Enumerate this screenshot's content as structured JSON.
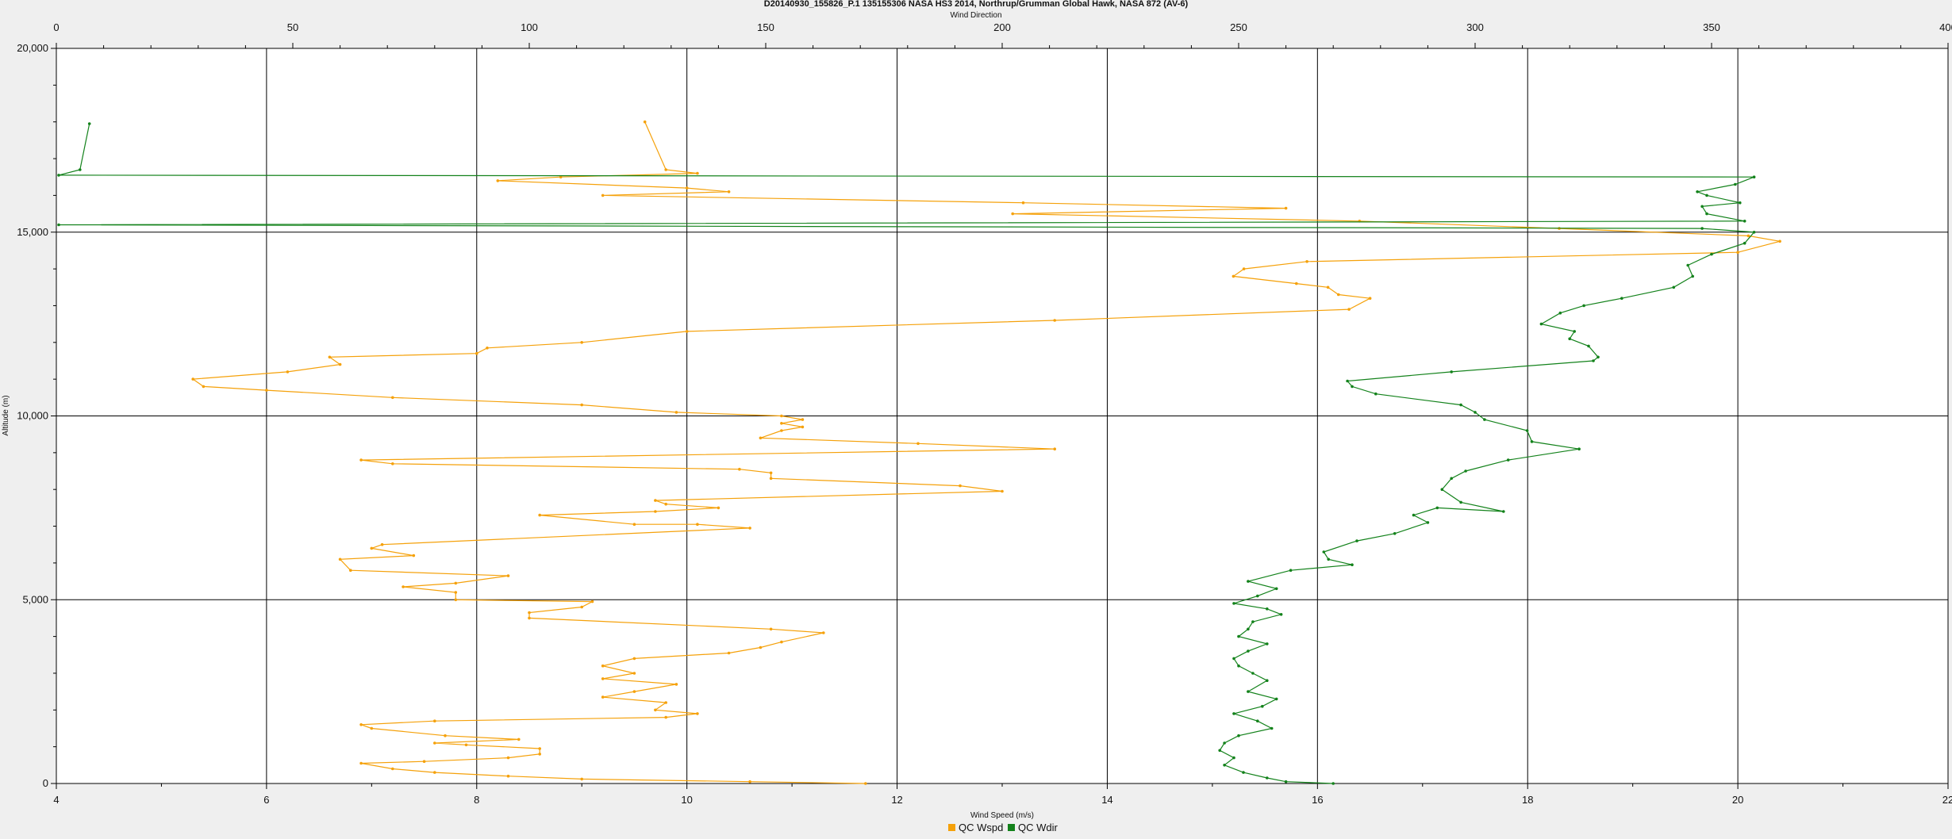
{
  "chart_data": {
    "type": "line",
    "title": "D20140930_155826_P.1 135155306 NASA HS3 2014, Northrup/Grumman Global Hawk, NASA 872 (AV-6)",
    "xlabel": "Wind Speed (m/s)",
    "x2label": "Wind Direction",
    "ylabel": "Altitude (m)",
    "xlim": [
      4,
      22
    ],
    "x2lim": [
      0,
      400
    ],
    "ylim": [
      0,
      20000
    ],
    "x_ticks": [
      "4",
      "6",
      "8",
      "10",
      "12",
      "14",
      "16",
      "18",
      "20",
      "22"
    ],
    "x2_ticks": [
      "0",
      "50",
      "100",
      "150",
      "200",
      "250",
      "300",
      "350",
      "400"
    ],
    "y_ticks": [
      "0",
      "5,000",
      "10,000",
      "15,000",
      "20,000"
    ],
    "grid": true,
    "legend_position": "bottom-center",
    "series": [
      {
        "name": "QC Wspd",
        "axis": "bottom",
        "color": "#f5a10a",
        "points": [
          [
            11.7,
            0
          ],
          [
            10.6,
            50
          ],
          [
            9.0,
            120
          ],
          [
            8.3,
            200
          ],
          [
            7.6,
            300
          ],
          [
            7.2,
            400
          ],
          [
            6.9,
            550
          ],
          [
            7.5,
            600
          ],
          [
            8.3,
            700
          ],
          [
            8.6,
            800
          ],
          [
            8.6,
            950
          ],
          [
            7.9,
            1050
          ],
          [
            7.6,
            1100
          ],
          [
            8.4,
            1200
          ],
          [
            7.7,
            1300
          ],
          [
            7.0,
            1500
          ],
          [
            6.9,
            1600
          ],
          [
            7.6,
            1700
          ],
          [
            9.8,
            1800
          ],
          [
            10.1,
            1900
          ],
          [
            9.7,
            2000
          ],
          [
            9.8,
            2200
          ],
          [
            9.2,
            2350
          ],
          [
            9.5,
            2500
          ],
          [
            9.9,
            2700
          ],
          [
            9.2,
            2850
          ],
          [
            9.5,
            3000
          ],
          [
            9.2,
            3200
          ],
          [
            9.5,
            3400
          ],
          [
            10.4,
            3550
          ],
          [
            10.7,
            3700
          ],
          [
            10.9,
            3850
          ],
          [
            11.3,
            4100
          ],
          [
            10.8,
            4200
          ],
          [
            8.5,
            4500
          ],
          [
            8.5,
            4650
          ],
          [
            9.0,
            4800
          ],
          [
            9.1,
            4950
          ],
          [
            7.8,
            5000
          ],
          [
            7.8,
            5200
          ],
          [
            7.3,
            5350
          ],
          [
            7.8,
            5450
          ],
          [
            8.3,
            5650
          ],
          [
            6.8,
            5800
          ],
          [
            6.7,
            6100
          ],
          [
            7.4,
            6200
          ],
          [
            7.0,
            6400
          ],
          [
            7.1,
            6500
          ],
          [
            10.6,
            6950
          ],
          [
            10.1,
            7050
          ],
          [
            9.5,
            7050
          ],
          [
            8.6,
            7300
          ],
          [
            9.7,
            7400
          ],
          [
            10.3,
            7500
          ],
          [
            9.8,
            7600
          ],
          [
            9.7,
            7700
          ],
          [
            13.0,
            7950
          ],
          [
            12.6,
            8100
          ],
          [
            10.8,
            8300
          ],
          [
            10.8,
            8450
          ],
          [
            10.5,
            8550
          ],
          [
            7.2,
            8700
          ],
          [
            6.9,
            8800
          ],
          [
            13.5,
            9100
          ],
          [
            12.2,
            9250
          ],
          [
            10.7,
            9400
          ],
          [
            10.9,
            9600
          ],
          [
            11.1,
            9700
          ],
          [
            10.9,
            9800
          ],
          [
            11.1,
            9900
          ],
          [
            10.9,
            10000
          ],
          [
            9.9,
            10100
          ],
          [
            9.0,
            10300
          ],
          [
            7.2,
            10500
          ],
          [
            6.0,
            10700
          ],
          [
            5.4,
            10800
          ],
          [
            5.3,
            11000
          ],
          [
            6.2,
            11200
          ],
          [
            6.7,
            11400
          ],
          [
            6.6,
            11600
          ],
          [
            8.0,
            11700
          ],
          [
            8.1,
            11850
          ],
          [
            9.0,
            12000
          ],
          [
            10.0,
            12300
          ],
          [
            13.5,
            12600
          ],
          [
            16.3,
            12900
          ],
          [
            16.5,
            13200
          ],
          [
            16.2,
            13300
          ],
          [
            16.1,
            13500
          ],
          [
            15.8,
            13600
          ],
          [
            15.2,
            13800
          ],
          [
            15.3,
            14000
          ],
          [
            15.9,
            14200
          ],
          [
            20.0,
            14450
          ],
          [
            20.4,
            14750
          ],
          [
            20.1,
            14900
          ],
          [
            18.3,
            15100
          ],
          [
            16.4,
            15300
          ],
          [
            13.1,
            15500
          ],
          [
            15.7,
            15650
          ],
          [
            13.2,
            15800
          ],
          [
            9.2,
            16000
          ],
          [
            10.4,
            16100
          ],
          [
            10.0,
            16200
          ],
          [
            8.2,
            16400
          ],
          [
            8.8,
            16500
          ],
          [
            10.1,
            16600
          ],
          [
            9.8,
            16700
          ],
          [
            9.6,
            18000
          ]
        ]
      },
      {
        "name": "QC Wdir",
        "axis": "top",
        "color": "#13821b",
        "points": [
          [
            270,
            0
          ],
          [
            260,
            50
          ],
          [
            256,
            150
          ],
          [
            251,
            300
          ],
          [
            247,
            500
          ],
          [
            249,
            700
          ],
          [
            246,
            900
          ],
          [
            247,
            1100
          ],
          [
            250,
            1300
          ],
          [
            257,
            1500
          ],
          [
            254,
            1700
          ],
          [
            249,
            1900
          ],
          [
            255,
            2100
          ],
          [
            258,
            2300
          ],
          [
            252,
            2500
          ],
          [
            256,
            2800
          ],
          [
            253,
            3000
          ],
          [
            250,
            3200
          ],
          [
            249,
            3400
          ],
          [
            252,
            3600
          ],
          [
            256,
            3800
          ],
          [
            250,
            4000
          ],
          [
            252,
            4200
          ],
          [
            253,
            4400
          ],
          [
            259,
            4600
          ],
          [
            256,
            4750
          ],
          [
            249,
            4900
          ],
          [
            254,
            5100
          ],
          [
            258,
            5300
          ],
          [
            252,
            5500
          ],
          [
            261,
            5800
          ],
          [
            274,
            5950
          ],
          [
            269,
            6100
          ],
          [
            268,
            6300
          ],
          [
            275,
            6600
          ],
          [
            283,
            6800
          ],
          [
            290,
            7100
          ],
          [
            287,
            7300
          ],
          [
            292,
            7500
          ],
          [
            306,
            7400
          ],
          [
            297,
            7650
          ],
          [
            293,
            8000
          ],
          [
            295,
            8300
          ],
          [
            298,
            8500
          ],
          [
            307,
            8800
          ],
          [
            322,
            9100
          ],
          [
            312,
            9300
          ],
          [
            311,
            9600
          ],
          [
            302,
            9900
          ],
          [
            300,
            10100
          ],
          [
            297,
            10300
          ],
          [
            279,
            10600
          ],
          [
            274,
            10800
          ],
          [
            273,
            10950
          ],
          [
            295,
            11200
          ],
          [
            325,
            11500
          ],
          [
            326,
            11600
          ],
          [
            324,
            11900
          ],
          [
            320,
            12100
          ],
          [
            321,
            12300
          ],
          [
            314,
            12500
          ],
          [
            318,
            12800
          ],
          [
            323,
            13000
          ],
          [
            331,
            13200
          ],
          [
            342,
            13500
          ],
          [
            346,
            13800
          ],
          [
            345,
            14100
          ],
          [
            350,
            14400
          ],
          [
            357,
            14700
          ],
          [
            359,
            15000
          ],
          [
            348,
            15100
          ],
          [
            0.5,
            15200
          ],
          [
            357,
            15300
          ],
          [
            349,
            15500
          ],
          [
            348,
            15700
          ],
          [
            356,
            15800
          ],
          [
            349,
            16000
          ],
          [
            347,
            16100
          ],
          [
            355,
            16300
          ],
          [
            359,
            16500
          ],
          [
            0.5,
            16550
          ],
          [
            5,
            16700
          ],
          [
            7,
            17950
          ]
        ]
      }
    ]
  }
}
